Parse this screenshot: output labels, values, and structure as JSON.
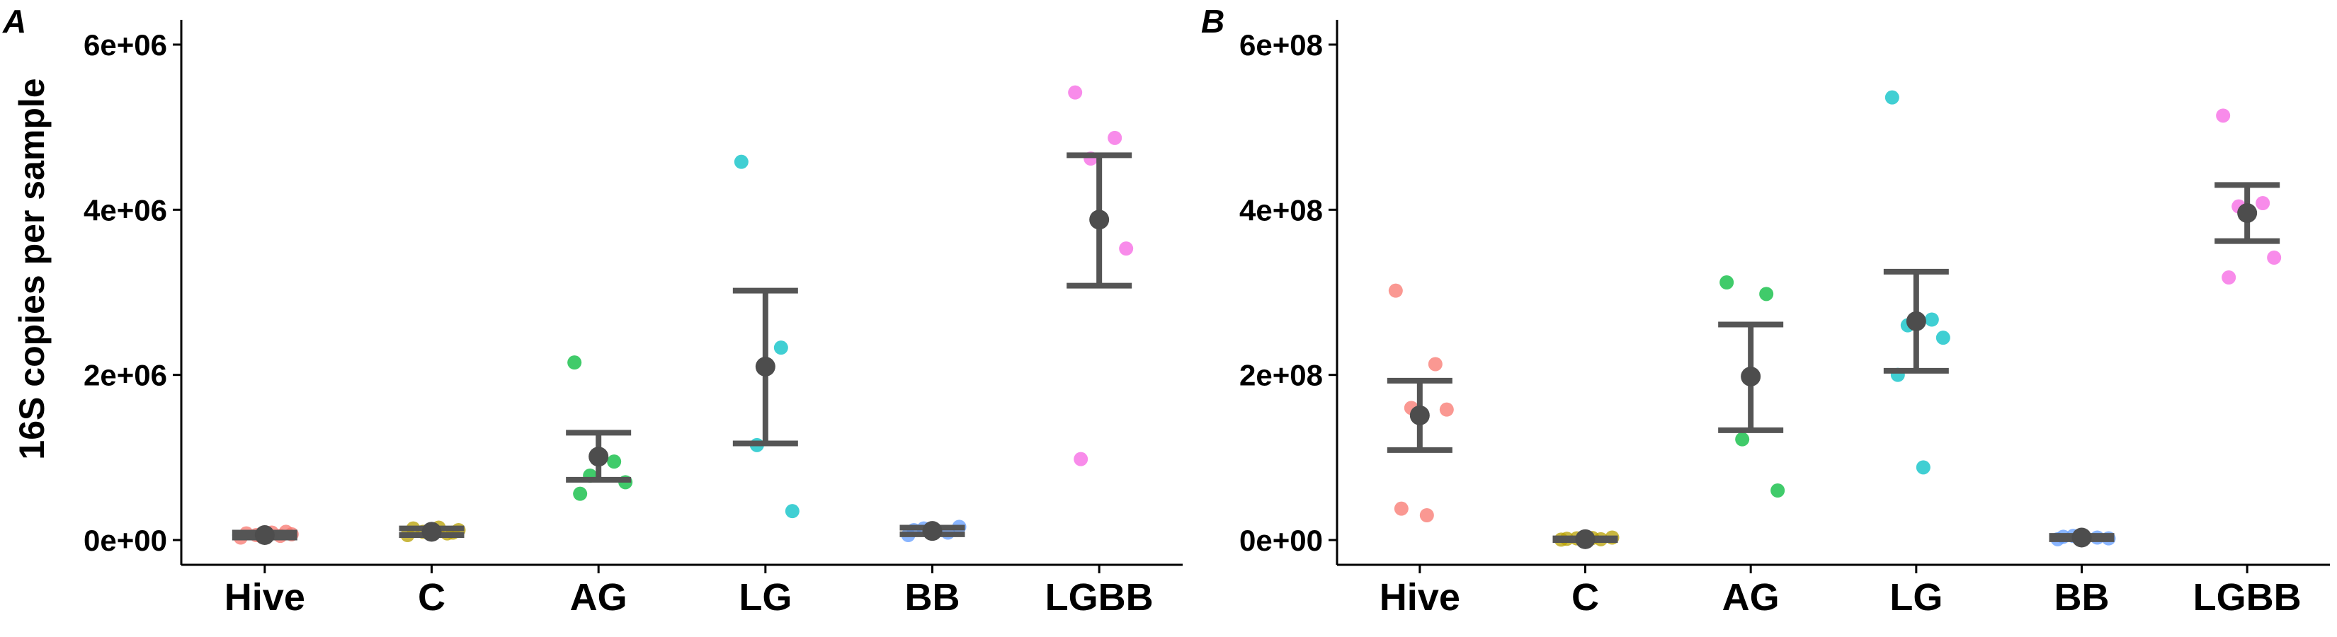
{
  "ylabel": "16S copies per sample",
  "colors": {
    "Hive": "#F8766D",
    "C": "#B79F00",
    "AG": "#00BA38",
    "LG": "#00BFC4",
    "BB": "#619CFF",
    "LGBB": "#F564E3",
    "summary": "#4D4D4D"
  },
  "chart_data": [
    {
      "type": "scatter",
      "panel": "A",
      "categories": [
        "Hive",
        "C",
        "AG",
        "LG",
        "BB",
        "LGBB"
      ],
      "ylim": [
        -300000,
        6300000
      ],
      "yticks": [
        0,
        2000000,
        4000000,
        6000000
      ],
      "ytick_labels": [
        "0e+00",
        "2e+06",
        "4e+06",
        "6e+06"
      ],
      "points": {
        "Hive": [
          30000,
          50000,
          60000,
          70000,
          80000,
          90000,
          100000,
          40000
        ],
        "C": [
          60000,
          80000,
          100000,
          120000,
          140000,
          150000,
          90000
        ],
        "AG": [
          2150000,
          950000,
          780000,
          700000,
          560000
        ],
        "LG": [
          4580000,
          2330000,
          1150000,
          350000
        ],
        "BB": [
          60000,
          90000,
          140000,
          160000,
          120000
        ],
        "LGBB": [
          5420000,
          4870000,
          4620000,
          3530000,
          980000
        ]
      },
      "mean": [
        60000,
        100000,
        1010000,
        2100000,
        110000,
        3880000
      ],
      "err_low": [
        30000,
        60000,
        730000,
        1170000,
        70000,
        3080000
      ],
      "err_high": [
        90000,
        140000,
        1300000,
        3020000,
        150000,
        4660000
      ],
      "grid": false
    },
    {
      "type": "scatter",
      "panel": "B",
      "categories": [
        "Hive",
        "C",
        "AG",
        "LG",
        "BB",
        "LGBB"
      ],
      "ylim": [
        -30000000,
        630000000
      ],
      "yticks": [
        0,
        200000000,
        400000000,
        600000000
      ],
      "ytick_labels": [
        "0e+00",
        "2e+08",
        "4e+08",
        "6e+08"
      ],
      "points": {
        "Hive": [
          302000000,
          213000000,
          160000000,
          158000000,
          38000000,
          30000000
        ],
        "C": [
          500000,
          1000000,
          2000000,
          3000000,
          1500000,
          2500000
        ],
        "AG": [
          312000000,
          298000000,
          122000000,
          60000000
        ],
        "LG": [
          536000000,
          267000000,
          260000000,
          245000000,
          200000000,
          88000000
        ],
        "BB": [
          1000000,
          3000000,
          5000000,
          2000000,
          4000000
        ],
        "LGBB": [
          514000000,
          408000000,
          404000000,
          342000000,
          318000000
        ],
        "_note_unused": []
      },
      "mean": [
        151000000,
        1000000,
        198000000,
        265000000,
        3000000,
        396000000
      ],
      "err_low": [
        109000000,
        0,
        133000000,
        205000000,
        1000000,
        362000000
      ],
      "err_high": [
        193000000,
        2000000,
        261000000,
        325000000,
        5000000,
        430000000
      ],
      "grid": false
    }
  ]
}
